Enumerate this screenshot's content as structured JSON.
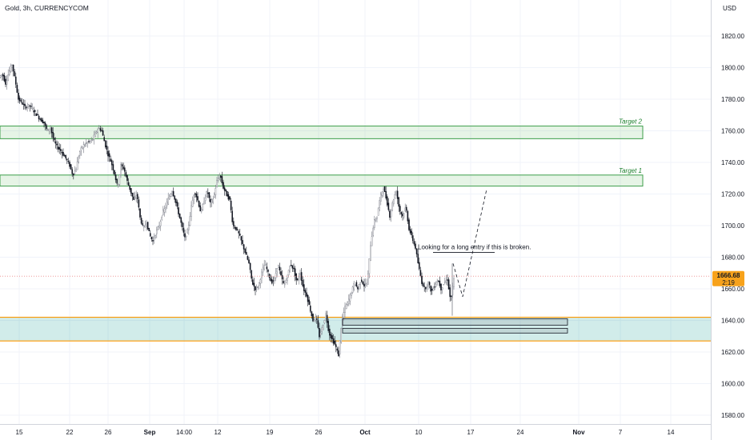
{
  "chart_data": {
    "type": "candlestick",
    "title": "Gold, 3h, CURRENCYCOM",
    "currency": "USD",
    "ylim": [
      1570,
      1840
    ],
    "y_ticks": [
      "1820.00",
      "1800.00",
      "1780.00",
      "1760.00",
      "1740.00",
      "1720.00",
      "1700.00",
      "1680.00",
      "1660.00",
      "1640.00",
      "1620.00",
      "1600.00",
      "1580.00"
    ],
    "x_ticks": [
      "15",
      "22",
      "26",
      "Sep",
      "14:00",
      "12",
      "19",
      "26",
      "Oct",
      "10",
      "17",
      "24",
      "Nov",
      "7",
      "14"
    ],
    "price_label": {
      "price": "1666.68",
      "countdown": "2:19",
      "value": 1666.68
    },
    "path": [
      [
        0,
        1794
      ],
      [
        4,
        1796
      ],
      [
        8,
        1790
      ],
      [
        12,
        1797
      ],
      [
        16,
        1802
      ],
      [
        20,
        1792
      ],
      [
        24,
        1780
      ],
      [
        28,
        1778
      ],
      [
        32,
        1775
      ],
      [
        38,
        1776
      ],
      [
        44,
        1772
      ],
      [
        50,
        1768
      ],
      [
        56,
        1765
      ],
      [
        60,
        1760
      ],
      [
        64,
        1762
      ],
      [
        68,
        1754
      ],
      [
        72,
        1750
      ],
      [
        76,
        1748
      ],
      [
        80,
        1745
      ],
      [
        84,
        1742
      ],
      [
        88,
        1738
      ],
      [
        92,
        1732
      ],
      [
        96,
        1736
      ],
      [
        100,
        1746
      ],
      [
        104,
        1750
      ],
      [
        108,
        1752
      ],
      [
        112,
        1753
      ],
      [
        116,
        1754
      ],
      [
        120,
        1758
      ],
      [
        124,
        1762
      ],
      [
        128,
        1760
      ],
      [
        132,
        1752
      ],
      [
        136,
        1745
      ],
      [
        140,
        1740
      ],
      [
        144,
        1733
      ],
      [
        148,
        1724
      ],
      [
        152,
        1738
      ],
      [
        156,
        1736
      ],
      [
        160,
        1728
      ],
      [
        164,
        1722
      ],
      [
        168,
        1716
      ],
      [
        172,
        1720
      ],
      [
        176,
        1705
      ],
      [
        180,
        1698
      ],
      [
        184,
        1702
      ],
      [
        188,
        1694
      ],
      [
        192,
        1690
      ],
      [
        196,
        1696
      ],
      [
        200,
        1700
      ],
      [
        204,
        1708
      ],
      [
        208,
        1712
      ],
      [
        212,
        1718
      ],
      [
        216,
        1722
      ],
      [
        220,
        1716
      ],
      [
        224,
        1708
      ],
      [
        228,
        1700
      ],
      [
        232,
        1692
      ],
      [
        236,
        1698
      ],
      [
        240,
        1712
      ],
      [
        244,
        1722
      ],
      [
        248,
        1716
      ],
      [
        252,
        1708
      ],
      [
        256,
        1716
      ],
      [
        260,
        1722
      ],
      [
        264,
        1714
      ],
      [
        268,
        1718
      ],
      [
        272,
        1728
      ],
      [
        276,
        1732
      ],
      [
        280,
        1724
      ],
      [
        284,
        1720
      ],
      [
        288,
        1716
      ],
      [
        292,
        1700
      ],
      [
        296,
        1698
      ],
      [
        300,
        1694
      ],
      [
        304,
        1688
      ],
      [
        308,
        1682
      ],
      [
        312,
        1676
      ],
      [
        316,
        1664
      ],
      [
        320,
        1660
      ],
      [
        324,
        1662
      ],
      [
        328,
        1670
      ],
      [
        332,
        1676
      ],
      [
        336,
        1670
      ],
      [
        340,
        1664
      ],
      [
        344,
        1666
      ],
      [
        348,
        1676
      ],
      [
        352,
        1668
      ],
      [
        356,
        1662
      ],
      [
        360,
        1668
      ],
      [
        364,
        1676
      ],
      [
        368,
        1672
      ],
      [
        372,
        1664
      ],
      [
        376,
        1670
      ],
      [
        380,
        1660
      ],
      [
        384,
        1656
      ],
      [
        388,
        1648
      ],
      [
        392,
        1640
      ],
      [
        396,
        1642
      ],
      [
        400,
        1630
      ],
      [
        404,
        1636
      ],
      [
        408,
        1644
      ],
      [
        412,
        1632
      ],
      [
        416,
        1628
      ],
      [
        420,
        1624
      ],
      [
        424,
        1618
      ],
      [
        428,
        1640
      ],
      [
        432,
        1648
      ],
      [
        436,
        1652
      ],
      [
        440,
        1658
      ],
      [
        444,
        1664
      ],
      [
        448,
        1660
      ],
      [
        452,
        1666
      ],
      [
        456,
        1662
      ],
      [
        460,
        1664
      ],
      [
        464,
        1688
      ],
      [
        468,
        1702
      ],
      [
        472,
        1706
      ],
      [
        476,
        1718
      ],
      [
        480,
        1724
      ],
      [
        484,
        1716
      ],
      [
        488,
        1706
      ],
      [
        492,
        1716
      ],
      [
        496,
        1722
      ],
      [
        500,
        1710
      ],
      [
        504,
        1706
      ],
      [
        508,
        1712
      ],
      [
        512,
        1698
      ],
      [
        516,
        1692
      ],
      [
        520,
        1686
      ],
      [
        524,
        1674
      ],
      [
        528,
        1664
      ],
      [
        532,
        1660
      ],
      [
        536,
        1664
      ],
      [
        540,
        1658
      ],
      [
        544,
        1662
      ],
      [
        548,
        1666
      ],
      [
        552,
        1660
      ],
      [
        556,
        1664
      ],
      [
        560,
        1666
      ],
      [
        564,
        1652
      ],
      [
        566,
        1660
      ],
      [
        568,
        1666
      ]
    ],
    "zones": [
      {
        "name": "Target 2",
        "top": 1763,
        "bottom": 1755
      },
      {
        "name": "Target 1",
        "top": 1732,
        "bottom": 1725
      }
    ],
    "support_zone": {
      "top": 1642,
      "bottom": 1627
    },
    "order_boxes": [
      {
        "top": 1641,
        "bottom": 1637
      },
      {
        "top": 1635,
        "bottom": 1632
      }
    ],
    "current_price_line": 1668,
    "annotation": {
      "text": "Looking for a long entry if this is broken.",
      "level": 1683
    },
    "projection": [
      [
        566,
        1676
      ],
      [
        578,
        1655
      ],
      [
        608,
        1723
      ]
    ]
  }
}
